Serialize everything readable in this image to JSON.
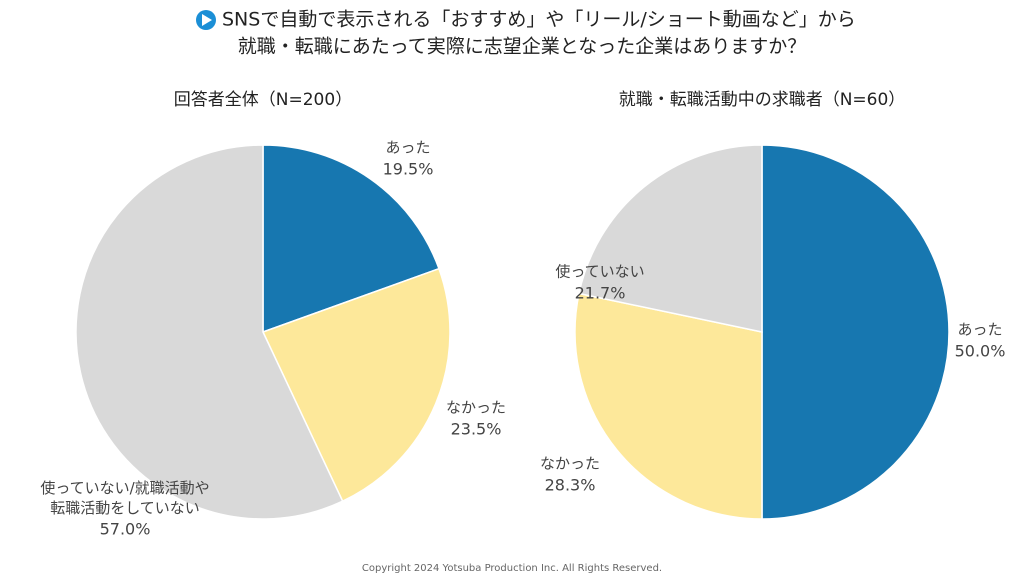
{
  "header": {
    "title": [
      "SNSで自動で表示される「おすすめ」や「リール/ショート動画など」から",
      "就職・転職にあたって実際に志望企業となった企業はありますか？"
    ],
    "copyright": "Copyright 2024  Yotsuba  Production  Inc.  All  Rights  Reserved."
  },
  "chart_data": [
    {
      "type": "pie",
      "title": "回答者全体（N=200）",
      "categories": [
        "あった",
        "なかった",
        "使っていない/就職活動や\n転職活動をしていない"
      ],
      "values": [
        19.5,
        23.5,
        57.0
      ],
      "value_labels": [
        "19.5%",
        "23.5%",
        "57.0%"
      ],
      "colors": [
        "#1777b0",
        "#fde89a",
        "#d9d9d9"
      ]
    },
    {
      "type": "pie",
      "title": "就職・転職活動中の求職者（N=60）",
      "categories": [
        "あった",
        "なかった",
        "使っていない"
      ],
      "values": [
        50.0,
        28.3,
        21.7
      ],
      "value_labels": [
        "50.0%",
        "28.3%",
        "21.7%"
      ],
      "colors": [
        "#1777b0",
        "#fde89a",
        "#d9d9d9"
      ]
    }
  ]
}
